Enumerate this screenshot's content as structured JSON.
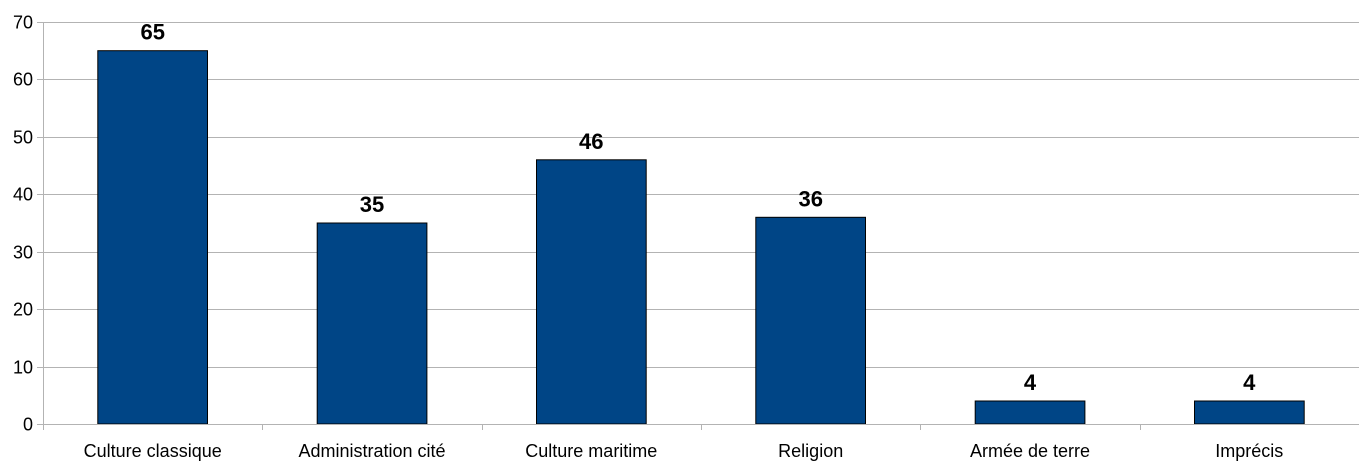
{
  "chart_data": {
    "type": "bar",
    "categories": [
      "Culture classique",
      "Administration cité",
      "Culture maritime",
      "Religion",
      "Armée de terre",
      "Imprécis"
    ],
    "values": [
      65,
      35,
      46,
      36,
      4,
      4
    ],
    "title": "",
    "xlabel": "",
    "ylabel": "",
    "ylim": [
      0,
      70
    ],
    "yticks": [
      0,
      10,
      20,
      30,
      40,
      50,
      60,
      70
    ],
    "grid": true,
    "legend": "none",
    "data_labels": true,
    "colors": {
      "bar_fill": "#004586",
      "bar_stroke": "#000000",
      "grid": "#b3b3b3",
      "axis": "#b3b3b3"
    }
  }
}
